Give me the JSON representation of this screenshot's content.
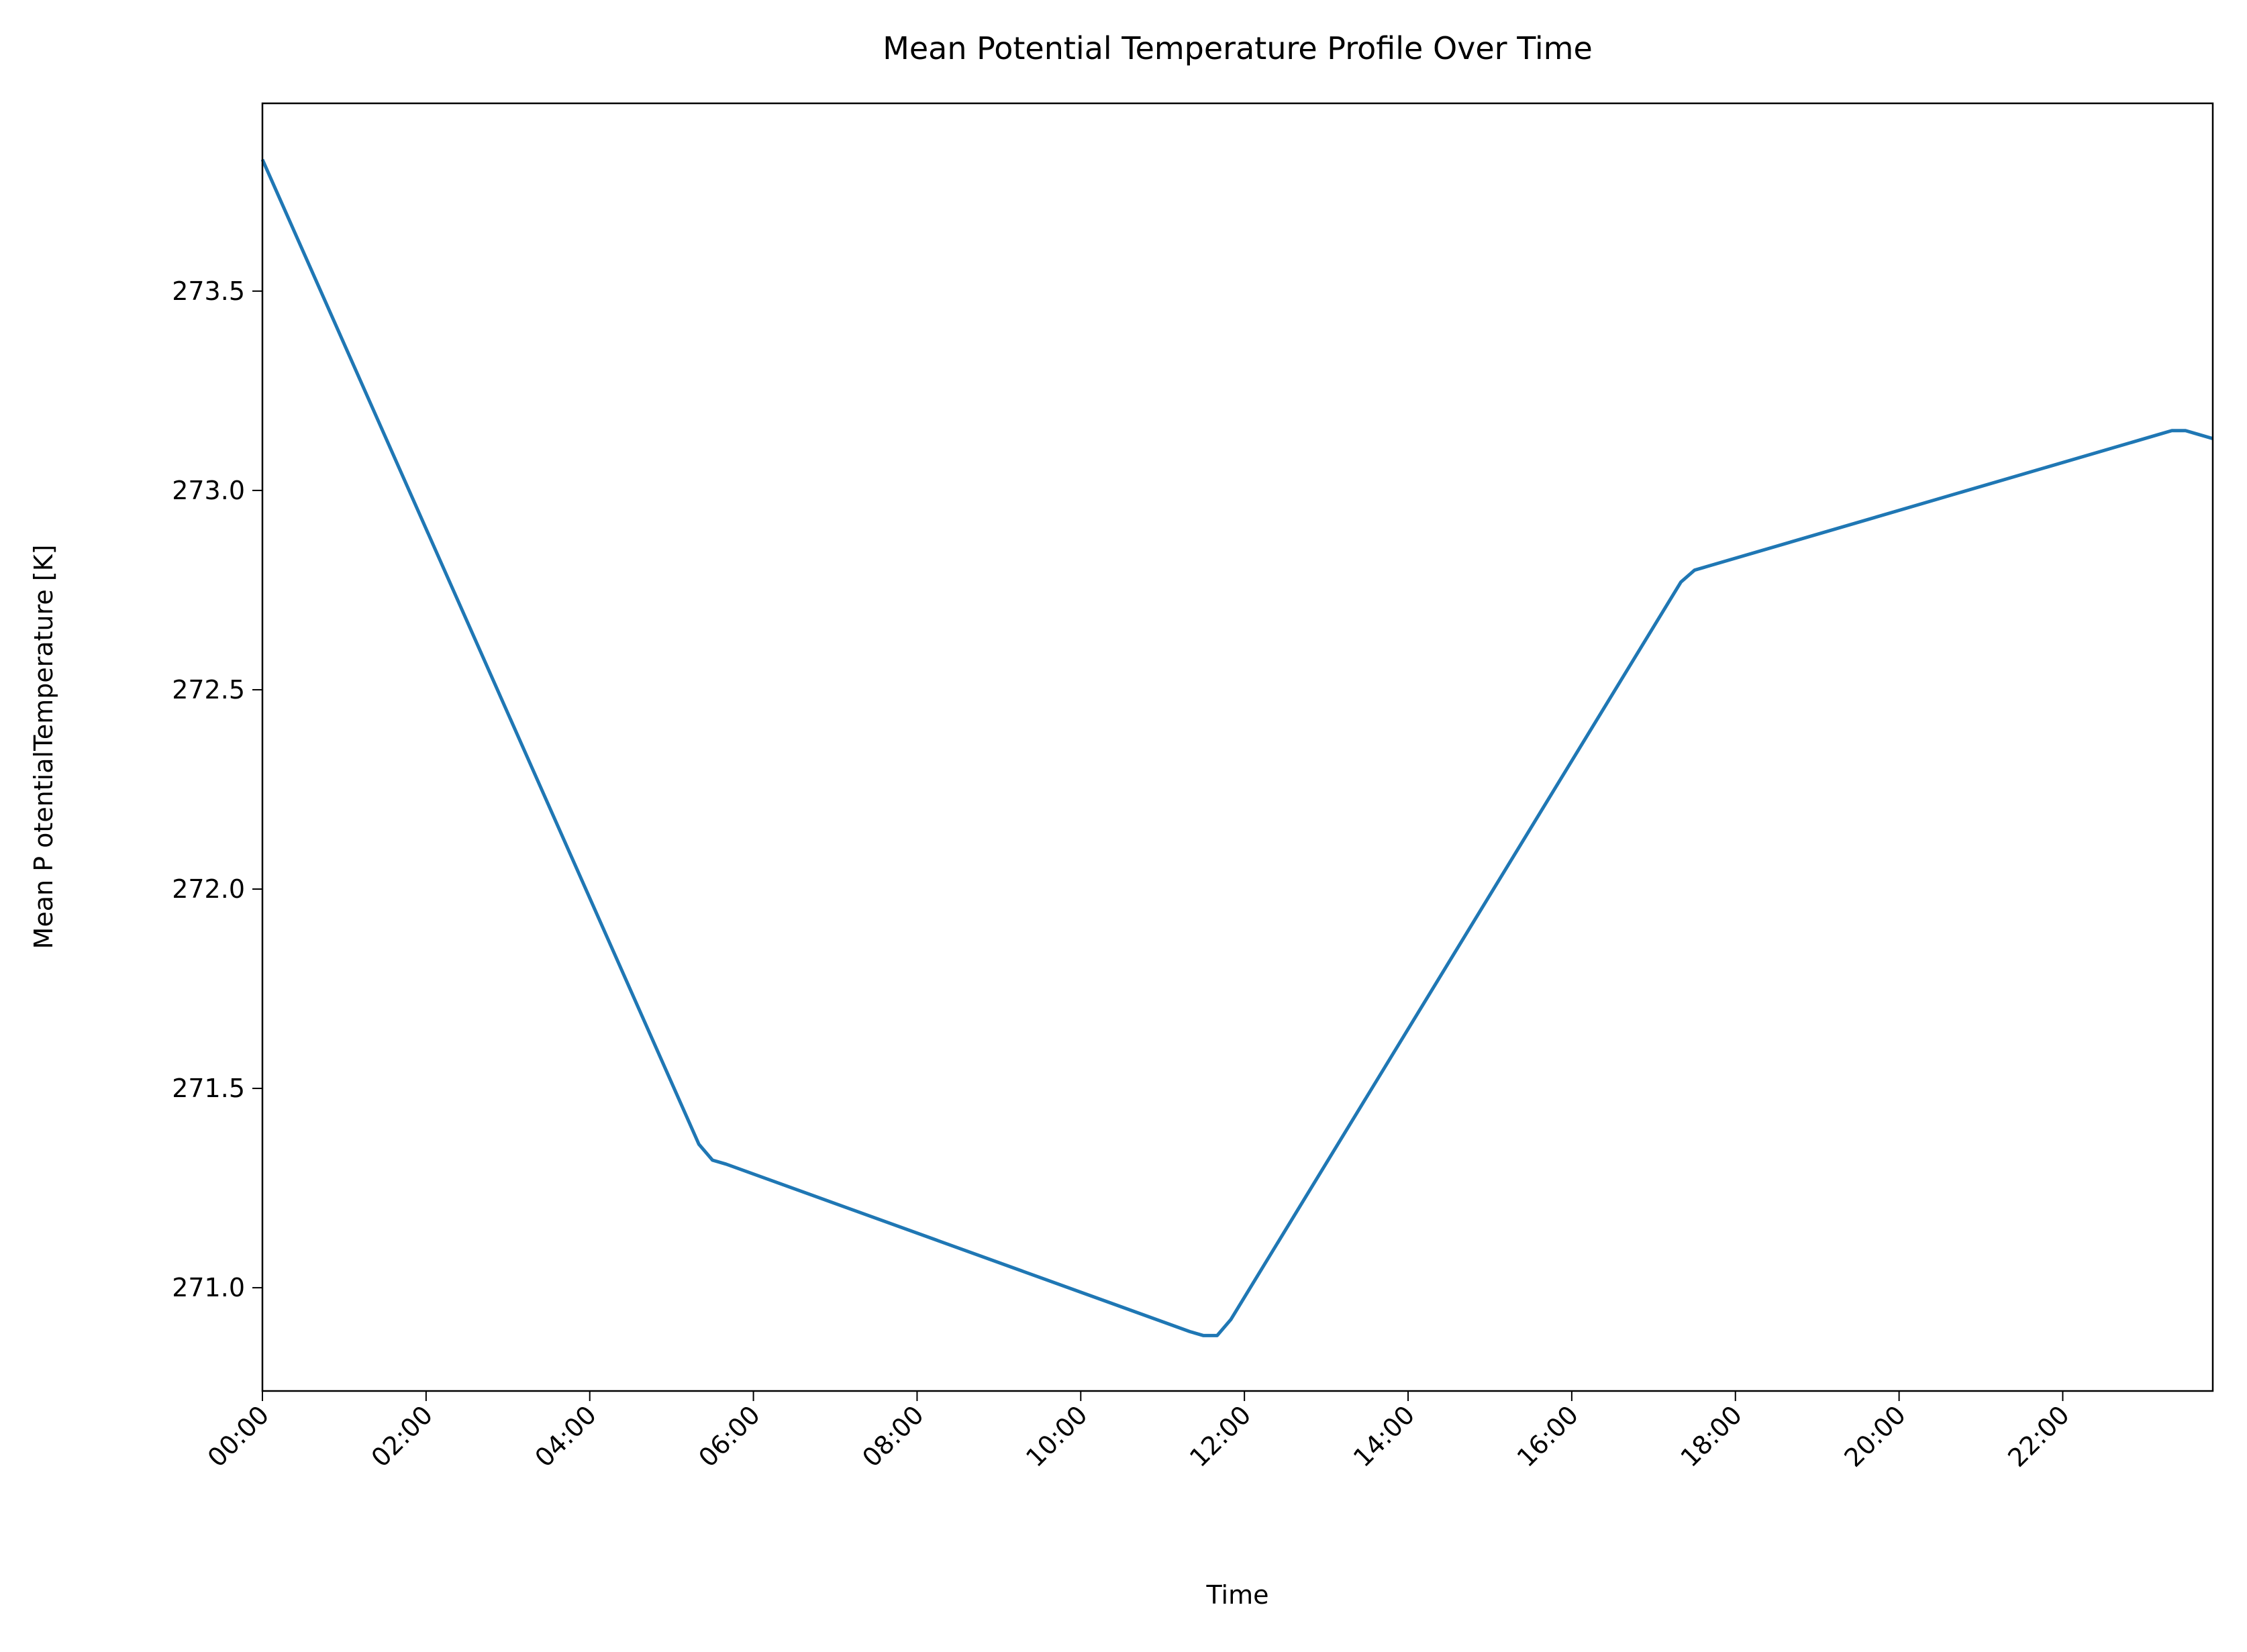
{
  "chart_data": {
    "type": "line",
    "title": "Mean Potential Temperature Profile Over Time",
    "xlabel": "Time",
    "ylabel": "Mean P otentialTemperature [K]",
    "x": [
      "00:00",
      "05:20",
      "05:30",
      "05:40",
      "11:20",
      "11:30",
      "11:40",
      "11:50",
      "17:20",
      "17:30",
      "17:40",
      "23:10",
      "23:20",
      "23:30",
      "23:40",
      "23:50"
    ],
    "series": [
      {
        "color": "#1f77b4",
        "values": [
          273.83,
          271.36,
          271.32,
          271.31,
          270.89,
          270.88,
          270.88,
          270.92,
          272.77,
          272.8,
          272.81,
          273.14,
          273.15,
          273.15,
          273.14,
          273.13
        ]
      }
    ],
    "xlim": [
      "00:00",
      "23:50"
    ],
    "xticks": [
      "00:00",
      "02:00",
      "04:00",
      "06:00",
      "08:00",
      "10:00",
      "12:00",
      "14:00",
      "16:00",
      "18:00",
      "20:00",
      "22:00"
    ],
    "ylim": [
      270.741,
      273.971
    ],
    "yticks": [
      {
        "value": 271.0,
        "label": "271.0"
      },
      271.5,
      {
        "value": 272.0,
        "label": "272.0"
      },
      272.5,
      {
        "value": 273.0,
        "label": "273.0"
      },
      273.5
    ],
    "grid": false
  }
}
